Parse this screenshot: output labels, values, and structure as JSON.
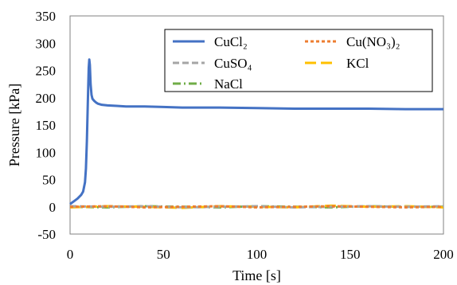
{
  "chart_data": {
    "type": "line",
    "title": "",
    "xlabel": "Time [s]",
    "ylabel": "Pressure [kPa]",
    "xlim": [
      0,
      200
    ],
    "ylim": [
      -50,
      350
    ],
    "x_ticks": [
      "0",
      "50",
      "100",
      "150",
      "200"
    ],
    "y_ticks": [
      "-50",
      "0",
      "50",
      "100",
      "150",
      "200",
      "250",
      "300",
      "350"
    ],
    "grid": false,
    "legend_position": "top-right",
    "series": [
      {
        "name": "CuCl₂",
        "color": "#4472C4",
        "dash": "solid",
        "x": [
          0,
          2,
          4,
          6,
          7,
          8,
          8.5,
          9,
          9.5,
          10,
          10.3,
          10.6,
          11,
          11.5,
          12,
          13,
          14,
          15,
          17,
          20,
          25,
          30,
          40,
          50,
          60,
          80,
          100,
          120,
          140,
          160,
          180,
          200
        ],
        "y": [
          5,
          10,
          15,
          22,
          28,
          45,
          70,
          120,
          190,
          255,
          270,
          260,
          225,
          205,
          198,
          194,
          191,
          189,
          187,
          186,
          185,
          184,
          184,
          183,
          182,
          182,
          181,
          180,
          180,
          180,
          179,
          179
        ]
      },
      {
        "name": "Cu(NO₃)₂",
        "color": "#ED7D31",
        "dash": "short-dash",
        "x": [
          0,
          20,
          40,
          60,
          80,
          100,
          120,
          140,
          160,
          180,
          200
        ],
        "y": [
          0,
          1,
          -1,
          0,
          1,
          -1,
          0,
          1,
          0,
          -1,
          0
        ]
      },
      {
        "name": "CuSO₄",
        "color": "#A5A5A5",
        "dash": "dash",
        "x": [
          0,
          20,
          40,
          60,
          80,
          100,
          120,
          140,
          160,
          180,
          200
        ],
        "y": [
          1,
          0,
          1,
          -1,
          0,
          1,
          -1,
          0,
          1,
          0,
          1
        ]
      },
      {
        "name": "KCl",
        "color": "#FFC000",
        "dash": "long-dash",
        "x": [
          0,
          20,
          40,
          60,
          80,
          100,
          120,
          140,
          160,
          180,
          200
        ],
        "y": [
          -1,
          1,
          0,
          -2,
          1,
          0,
          -1,
          2,
          0,
          1,
          -1
        ]
      },
      {
        "name": "NaCl",
        "color": "#70AD47",
        "dash": "dash-dot",
        "x": [
          0,
          20,
          40,
          60,
          80,
          100,
          120,
          140,
          160,
          180,
          200
        ],
        "y": [
          0,
          -1,
          1,
          0,
          -1,
          1,
          0,
          -1,
          1,
          0,
          0
        ]
      }
    ]
  }
}
